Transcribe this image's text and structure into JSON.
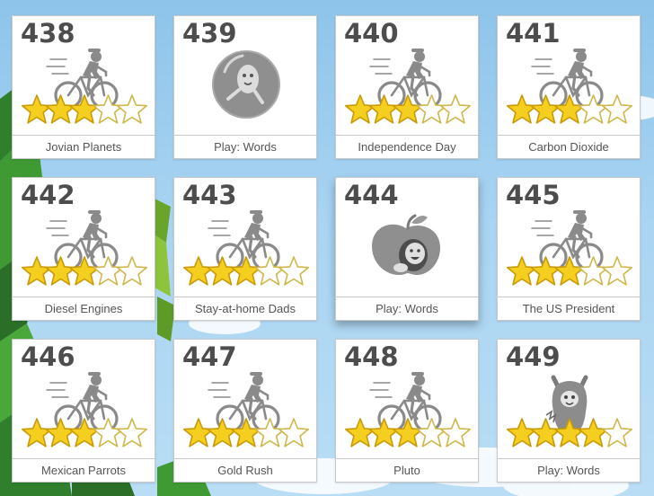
{
  "colors": {
    "star_fill": "#f4cf1f",
    "star_edge": "#c99a06",
    "star_empty": "#ffffff",
    "icon_gray": "#8a8a8a",
    "number_text": "#4d4d4d"
  },
  "tiles": [
    {
      "number": "438",
      "label": "Jovian Planets",
      "icon": "bike-rider-icon",
      "stars_earned": 3,
      "stars_total": 5
    },
    {
      "number": "439",
      "label": "Play: Words",
      "icon": "bubble-character-icon",
      "stars_earned": 0,
      "stars_total": 0
    },
    {
      "number": "440",
      "label": "Independence Day",
      "icon": "bike-rider-icon",
      "stars_earned": 3,
      "stars_total": 5
    },
    {
      "number": "441",
      "label": "Carbon Dioxide",
      "icon": "bike-rider-icon",
      "stars_earned": 3,
      "stars_total": 5
    },
    {
      "number": "442",
      "label": "Diesel Engines",
      "icon": "bike-rider-icon",
      "stars_earned": 3,
      "stars_total": 5
    },
    {
      "number": "443",
      "label": "Stay-at-home Dads",
      "icon": "bike-rider-icon",
      "stars_earned": 3,
      "stars_total": 5
    },
    {
      "number": "444",
      "label": "Play: Words",
      "icon": "apple-character-icon",
      "stars_earned": 0,
      "stars_total": 0
    },
    {
      "number": "445",
      "label": "The US President",
      "icon": "bike-rider-icon",
      "stars_earned": 3,
      "stars_total": 5
    },
    {
      "number": "446",
      "label": "Mexican Parrots",
      "icon": "bike-rider-icon",
      "stars_earned": 3,
      "stars_total": 5
    },
    {
      "number": "447",
      "label": "Gold Rush",
      "icon": "bike-rider-icon",
      "stars_earned": 3,
      "stars_total": 5
    },
    {
      "number": "448",
      "label": "Pluto",
      "icon": "bike-rider-icon",
      "stars_earned": 3,
      "stars_total": 5
    },
    {
      "number": "449",
      "label": "Play: Words",
      "icon": "monster-character-icon",
      "stars_earned": 4,
      "stars_total": 5
    }
  ]
}
